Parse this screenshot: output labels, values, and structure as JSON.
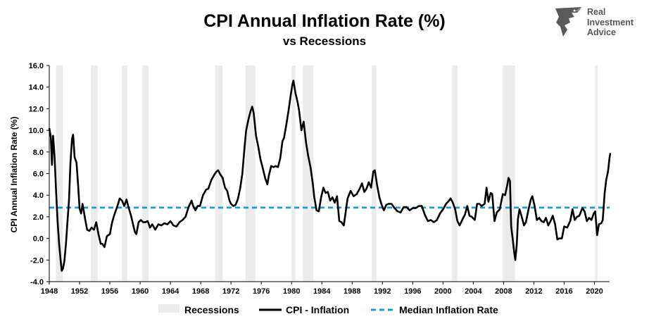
{
  "logo": {
    "lines": [
      "Real",
      "Investment",
      "Advice"
    ]
  },
  "chart_data": {
    "type": "line",
    "title": "CPI Annual Inflation Rate (%)",
    "subtitle": "vs Recessions",
    "ylabel": "CPI Annual Inflation Rate (%)",
    "xlabel": "",
    "xlim": [
      1948,
      2022
    ],
    "ylim": [
      -4,
      16
    ],
    "yticks": [
      "-4.0",
      "-2.0",
      "0.0",
      "2.0",
      "4.0",
      "6.0",
      "8.0",
      "10.0",
      "12.0",
      "14.0",
      "16.0"
    ],
    "xticks": [
      "1948",
      "1952",
      "1956",
      "1960",
      "1964",
      "1968",
      "1972",
      "1976",
      "1980",
      "1984",
      "1988",
      "1992",
      "1996",
      "2000",
      "2004",
      "2008",
      "2012",
      "2016",
      "2020"
    ],
    "grid": false,
    "legend_placement": "bottom",
    "legend": [
      "Recessions",
      "CPI - Inflation",
      "Median Inflation Rate"
    ],
    "colors": {
      "recession": "#ebebeb",
      "cpi": "#000000",
      "median": "#1f9bd3"
    },
    "median_inflation_rate": 2.85,
    "recessions": [
      [
        1948.9,
        1949.8
      ],
      [
        1953.5,
        1954.4
      ],
      [
        1957.6,
        1958.3
      ],
      [
        1960.3,
        1961.1
      ],
      [
        1969.9,
        1970.9
      ],
      [
        1973.9,
        1975.2
      ],
      [
        1980.0,
        1980.5
      ],
      [
        1981.5,
        1982.9
      ],
      [
        1990.6,
        1991.2
      ],
      [
        2001.2,
        2001.9
      ],
      [
        2007.9,
        2009.5
      ],
      [
        2020.1,
        2020.4
      ]
    ],
    "series": [
      {
        "name": "CPI - Inflation",
        "points": [
          [
            1948.0,
            10.2
          ],
          [
            1948.2,
            9.4
          ],
          [
            1948.35,
            6.8
          ],
          [
            1948.5,
            9.5
          ],
          [
            1948.7,
            7.6
          ],
          [
            1948.9,
            4.3
          ],
          [
            1949.1,
            1.6
          ],
          [
            1949.3,
            -0.5
          ],
          [
            1949.5,
            -2.0
          ],
          [
            1949.65,
            -3.0
          ],
          [
            1949.8,
            -2.8
          ],
          [
            1950.0,
            -2.1
          ],
          [
            1950.2,
            -0.5
          ],
          [
            1950.4,
            1.5
          ],
          [
            1950.6,
            3.5
          ],
          [
            1950.8,
            7.0
          ],
          [
            1951.0,
            9.2
          ],
          [
            1951.15,
            9.6
          ],
          [
            1951.35,
            7.5
          ],
          [
            1951.6,
            7.0
          ],
          [
            1951.8,
            5.0
          ],
          [
            1952.0,
            2.8
          ],
          [
            1952.2,
            2.3
          ],
          [
            1952.4,
            3.2
          ],
          [
            1952.7,
            1.9
          ],
          [
            1953.0,
            0.8
          ],
          [
            1953.3,
            0.7
          ],
          [
            1953.6,
            1.0
          ],
          [
            1953.9,
            0.8
          ],
          [
            1954.2,
            1.5
          ],
          [
            1954.5,
            0.4
          ],
          [
            1954.8,
            -0.5
          ],
          [
            1955.0,
            -0.5
          ],
          [
            1955.3,
            -0.8
          ],
          [
            1955.6,
            0.2
          ],
          [
            1956.0,
            0.4
          ],
          [
            1956.3,
            1.5
          ],
          [
            1956.6,
            2.2
          ],
          [
            1957.0,
            3.0
          ],
          [
            1957.3,
            3.7
          ],
          [
            1957.6,
            3.5
          ],
          [
            1957.9,
            3.0
          ],
          [
            1958.2,
            3.6
          ],
          [
            1958.5,
            2.8
          ],
          [
            1958.8,
            2.1
          ],
          [
            1959.0,
            1.5
          ],
          [
            1959.3,
            0.6
          ],
          [
            1959.5,
            0.4
          ],
          [
            1959.8,
            1.5
          ],
          [
            1960.1,
            1.7
          ],
          [
            1960.4,
            1.5
          ],
          [
            1960.7,
            1.5
          ],
          [
            1961.0,
            1.6
          ],
          [
            1961.3,
            1.0
          ],
          [
            1961.6,
            1.3
          ],
          [
            1962.0,
            0.8
          ],
          [
            1962.4,
            1.3
          ],
          [
            1962.8,
            1.2
          ],
          [
            1963.2,
            1.4
          ],
          [
            1963.6,
            1.3
          ],
          [
            1964.0,
            1.6
          ],
          [
            1964.4,
            1.2
          ],
          [
            1964.8,
            1.1
          ],
          [
            1965.2,
            1.5
          ],
          [
            1965.6,
            1.7
          ],
          [
            1966.0,
            2.0
          ],
          [
            1966.4,
            2.9
          ],
          [
            1966.8,
            3.5
          ],
          [
            1967.0,
            3.0
          ],
          [
            1967.3,
            2.6
          ],
          [
            1967.6,
            3.0
          ],
          [
            1967.9,
            3.0
          ],
          [
            1968.3,
            4.0
          ],
          [
            1968.7,
            4.5
          ],
          [
            1969.0,
            4.6
          ],
          [
            1969.4,
            5.4
          ],
          [
            1969.8,
            5.9
          ],
          [
            1970.1,
            6.2
          ],
          [
            1970.3,
            6.3
          ],
          [
            1970.6,
            5.9
          ],
          [
            1970.9,
            5.6
          ],
          [
            1971.2,
            4.7
          ],
          [
            1971.5,
            4.4
          ],
          [
            1971.8,
            3.5
          ],
          [
            1972.0,
            3.2
          ],
          [
            1972.3,
            3.0
          ],
          [
            1972.6,
            3.1
          ],
          [
            1972.9,
            3.6
          ],
          [
            1973.2,
            4.6
          ],
          [
            1973.5,
            6.0
          ],
          [
            1973.8,
            8.5
          ],
          [
            1974.0,
            10.0
          ],
          [
            1974.3,
            11.0
          ],
          [
            1974.6,
            11.8
          ],
          [
            1974.8,
            12.2
          ],
          [
            1975.0,
            11.6
          ],
          [
            1975.3,
            9.5
          ],
          [
            1975.6,
            8.5
          ],
          [
            1975.9,
            7.3
          ],
          [
            1976.2,
            6.5
          ],
          [
            1976.5,
            5.6
          ],
          [
            1976.8,
            5.0
          ],
          [
            1977.0,
            5.8
          ],
          [
            1977.3,
            6.7
          ],
          [
            1977.6,
            6.6
          ],
          [
            1977.9,
            6.7
          ],
          [
            1978.2,
            6.6
          ],
          [
            1978.5,
            7.4
          ],
          [
            1978.8,
            9.0
          ],
          [
            1979.0,
            9.3
          ],
          [
            1979.3,
            10.5
          ],
          [
            1979.6,
            11.8
          ],
          [
            1979.9,
            13.3
          ],
          [
            1980.1,
            14.2
          ],
          [
            1980.25,
            14.6
          ],
          [
            1980.5,
            13.5
          ],
          [
            1980.8,
            12.6
          ],
          [
            1981.0,
            11.8
          ],
          [
            1981.3,
            10.0
          ],
          [
            1981.6,
            10.8
          ],
          [
            1981.9,
            8.9
          ],
          [
            1982.2,
            7.6
          ],
          [
            1982.5,
            6.6
          ],
          [
            1982.8,
            5.1
          ],
          [
            1983.0,
            3.8
          ],
          [
            1983.3,
            2.6
          ],
          [
            1983.6,
            2.5
          ],
          [
            1983.9,
            3.8
          ],
          [
            1984.2,
            4.7
          ],
          [
            1984.5,
            4.2
          ],
          [
            1984.8,
            4.3
          ],
          [
            1985.1,
            3.5
          ],
          [
            1985.4,
            3.8
          ],
          [
            1985.7,
            3.3
          ],
          [
            1986.0,
            3.9
          ],
          [
            1986.3,
            1.6
          ],
          [
            1986.6,
            1.5
          ],
          [
            1986.9,
            1.2
          ],
          [
            1987.1,
            2.2
          ],
          [
            1987.4,
            3.7
          ],
          [
            1987.8,
            4.4
          ],
          [
            1988.2,
            3.9
          ],
          [
            1988.6,
            4.1
          ],
          [
            1989.0,
            4.6
          ],
          [
            1989.3,
            5.1
          ],
          [
            1989.6,
            4.3
          ],
          [
            1989.9,
            4.6
          ],
          [
            1990.2,
            5.2
          ],
          [
            1990.5,
            4.7
          ],
          [
            1990.8,
            6.2
          ],
          [
            1991.0,
            6.3
          ],
          [
            1991.3,
            4.9
          ],
          [
            1991.6,
            3.8
          ],
          [
            1991.9,
            3.1
          ],
          [
            1992.2,
            2.6
          ],
          [
            1992.5,
            3.1
          ],
          [
            1992.8,
            3.2
          ],
          [
            1993.2,
            3.2
          ],
          [
            1993.6,
            2.8
          ],
          [
            1994.0,
            2.5
          ],
          [
            1994.4,
            2.4
          ],
          [
            1994.8,
            2.9
          ],
          [
            1995.2,
            2.9
          ],
          [
            1995.6,
            2.6
          ],
          [
            1996.0,
            2.8
          ],
          [
            1996.4,
            2.8
          ],
          [
            1996.8,
            3.0
          ],
          [
            1997.2,
            3.0
          ],
          [
            1997.6,
            2.2
          ],
          [
            1998.0,
            1.6
          ],
          [
            1998.4,
            1.7
          ],
          [
            1998.8,
            1.5
          ],
          [
            1999.2,
            1.7
          ],
          [
            1999.6,
            2.3
          ],
          [
            2000.0,
            2.7
          ],
          [
            2000.4,
            3.2
          ],
          [
            2000.8,
            3.5
          ],
          [
            2001.0,
            3.7
          ],
          [
            2001.3,
            3.3
          ],
          [
            2001.6,
            2.7
          ],
          [
            2001.9,
            1.6
          ],
          [
            2002.2,
            1.2
          ],
          [
            2002.6,
            1.8
          ],
          [
            2002.9,
            2.2
          ],
          [
            2003.2,
            3.0
          ],
          [
            2003.5,
            2.1
          ],
          [
            2003.8,
            2.0
          ],
          [
            2004.2,
            1.7
          ],
          [
            2004.5,
            3.2
          ],
          [
            2004.8,
            3.2
          ],
          [
            2005.1,
            3.0
          ],
          [
            2005.5,
            3.2
          ],
          [
            2005.75,
            4.7
          ],
          [
            2006.0,
            3.4
          ],
          [
            2006.3,
            4.2
          ],
          [
            2006.5,
            4.1
          ],
          [
            2006.8,
            1.6
          ],
          [
            2007.1,
            2.4
          ],
          [
            2007.5,
            2.7
          ],
          [
            2007.9,
            4.1
          ],
          [
            2008.2,
            4.0
          ],
          [
            2008.5,
            5.0
          ],
          [
            2008.65,
            5.6
          ],
          [
            2008.85,
            5.3
          ],
          [
            2009.0,
            1.1
          ],
          [
            2009.2,
            0.0
          ],
          [
            2009.4,
            -1.3
          ],
          [
            2009.55,
            -2.0
          ],
          [
            2009.75,
            -0.5
          ],
          [
            2009.9,
            1.8
          ],
          [
            2010.1,
            2.7
          ],
          [
            2010.4,
            2.0
          ],
          [
            2010.7,
            1.2
          ],
          [
            2010.95,
            1.5
          ],
          [
            2011.3,
            2.7
          ],
          [
            2011.6,
            3.6
          ],
          [
            2011.8,
            3.9
          ],
          [
            2012.1,
            3.0
          ],
          [
            2012.4,
            1.7
          ],
          [
            2012.7,
            1.9
          ],
          [
            2013.0,
            1.6
          ],
          [
            2013.3,
            1.5
          ],
          [
            2013.6,
            1.9
          ],
          [
            2013.9,
            1.2
          ],
          [
            2014.2,
            1.6
          ],
          [
            2014.5,
            2.1
          ],
          [
            2014.8,
            1.3
          ],
          [
            2015.1,
            -0.1
          ],
          [
            2015.4,
            0.0
          ],
          [
            2015.7,
            0.0
          ],
          [
            2016.0,
            1.1
          ],
          [
            2016.4,
            1.0
          ],
          [
            2016.8,
            1.6
          ],
          [
            2017.1,
            2.7
          ],
          [
            2017.4,
            1.7
          ],
          [
            2017.7,
            2.0
          ],
          [
            2018.0,
            2.1
          ],
          [
            2018.4,
            2.8
          ],
          [
            2018.7,
            2.5
          ],
          [
            2019.0,
            1.6
          ],
          [
            2019.3,
            1.9
          ],
          [
            2019.6,
            1.7
          ],
          [
            2019.9,
            2.3
          ],
          [
            2020.1,
            2.5
          ],
          [
            2020.35,
            0.3
          ],
          [
            2020.6,
            1.3
          ],
          [
            2020.9,
            1.4
          ],
          [
            2021.1,
            1.7
          ],
          [
            2021.35,
            4.2
          ],
          [
            2021.55,
            5.4
          ],
          [
            2021.8,
            6.2
          ],
          [
            2022.0,
            7.5
          ],
          [
            2022.1,
            7.9
          ]
        ]
      }
    ]
  }
}
